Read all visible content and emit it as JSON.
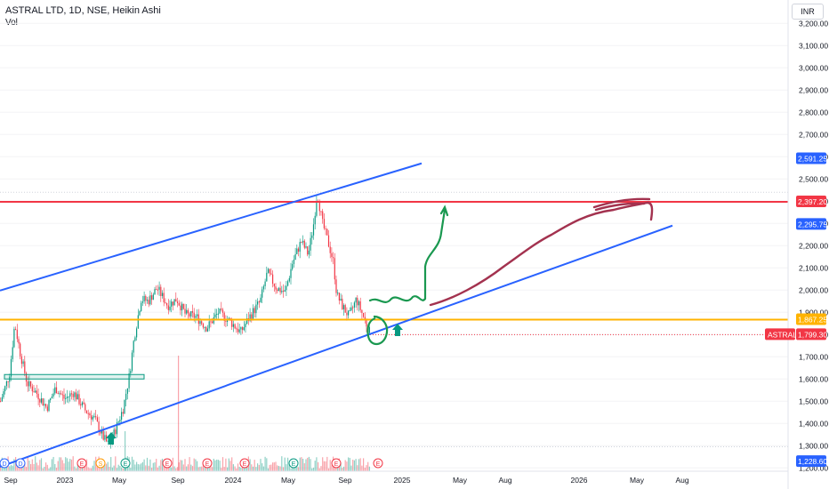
{
  "header": {
    "title": "ASTRAL LTD, 1D, NSE, Heikin Ashi",
    "volume_label": "Vol"
  },
  "currency_button": "INR",
  "chart_data": {
    "type": "candlestick",
    "symbol": "ASTRAL",
    "y_ticks": [
      "3,200.00",
      "3,100.00",
      "3,000.00",
      "2,900.00",
      "2,800.00",
      "2,700.00",
      "2,600.00",
      "2,500.00",
      "2,400.00",
      "2,300.00",
      "2,200.00",
      "2,100.00",
      "2,000.00",
      "1,900.00",
      "1,800.00",
      "1,700.00",
      "1,600.00",
      "1,500.00",
      "1,400.00",
      "1,300.00",
      "1,200.00"
    ],
    "y_tick_values": [
      3200,
      3100,
      3000,
      2900,
      2800,
      2700,
      2600,
      2500,
      2400,
      2300,
      2200,
      2100,
      2000,
      1900,
      1800,
      1700,
      1600,
      1500,
      1400,
      1300,
      1200
    ],
    "ylim": [
      1185,
      3265
    ],
    "x_ticks": [
      "Sep",
      "2023",
      "May",
      "Sep",
      "2024",
      "May",
      "Sep",
      "2025",
      "May",
      "Aug",
      "2026",
      "May",
      "Aug"
    ],
    "price_tags": [
      {
        "label": "",
        "value": "2,591.25",
        "color": "#2962ff"
      },
      {
        "label": "",
        "value": "2,397.20",
        "color": "#f23645"
      },
      {
        "label": "",
        "value": "2,295.75",
        "color": "#2962ff"
      },
      {
        "label": "",
        "value": "1,867.25",
        "color": "#ffb300"
      },
      {
        "label": "ASTRAL",
        "value": "1,799.30",
        "color": "#f23645"
      },
      {
        "label": "",
        "value": "1,228.60",
        "color": "#2962ff"
      }
    ],
    "horizontal_lines": [
      {
        "value": 2397.2,
        "color": "#f23645"
      },
      {
        "value": 1867.25,
        "color": "#ffb300"
      }
    ],
    "price_path": [
      [
        0,
        1500
      ],
      [
        10,
        1620
      ],
      [
        16,
        1850
      ],
      [
        22,
        1720
      ],
      [
        30,
        1580
      ],
      [
        40,
        1540
      ],
      [
        52,
        1470
      ],
      [
        62,
        1560
      ],
      [
        72,
        1510
      ],
      [
        82,
        1540
      ],
      [
        95,
        1460
      ],
      [
        106,
        1420
      ],
      [
        115,
        1340
      ],
      [
        122,
        1300
      ],
      [
        130,
        1380
      ],
      [
        138,
        1470
      ],
      [
        145,
        1620
      ],
      [
        150,
        1780
      ],
      [
        158,
        1960
      ],
      [
        166,
        1950
      ],
      [
        176,
        2010
      ],
      [
        188,
        1930
      ],
      [
        198,
        1960
      ],
      [
        208,
        1890
      ],
      [
        220,
        1880
      ],
      [
        232,
        1830
      ],
      [
        245,
        1900
      ],
      [
        258,
        1860
      ],
      [
        270,
        1810
      ],
      [
        280,
        1880
      ],
      [
        292,
        1950
      ],
      [
        300,
        2080
      ],
      [
        310,
        2010
      ],
      [
        320,
        1990
      ],
      [
        328,
        2120
      ],
      [
        338,
        2220
      ],
      [
        346,
        2160
      ],
      [
        352,
        2300
      ],
      [
        356,
        2440
      ],
      [
        362,
        2300
      ],
      [
        368,
        2220
      ],
      [
        374,
        2130
      ],
      [
        378,
        1980
      ],
      [
        384,
        1930
      ],
      [
        392,
        1880
      ],
      [
        400,
        1960
      ],
      [
        406,
        1900
      ],
      [
        412,
        1840
      ],
      [
        416,
        1800
      ]
    ],
    "marker_colors": {
      "up": "#089981",
      "down": "#f23645",
      "channel": "#2962ff",
      "drawing_green": "#1a9850",
      "drawing_maroon": "#a3324f"
    }
  }
}
